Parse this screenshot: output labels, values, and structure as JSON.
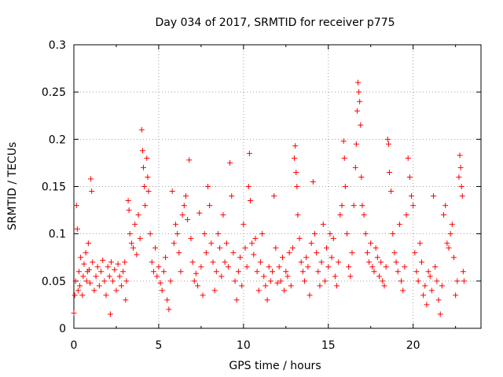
{
  "chart_data": {
    "type": "scatter",
    "title": "Day 034 of 2017, SRMTID for receiver p775",
    "xlabel": "GPS time / hours",
    "ylabel": "SRMTID / TECUs",
    "xlim": [
      0,
      24
    ],
    "ylim": [
      0,
      0.3
    ],
    "xticks": [
      0,
      5,
      10,
      15,
      20
    ],
    "yticks": [
      0,
      0.05,
      0.1,
      0.15,
      0.2,
      0.25,
      0.3
    ],
    "xtick_labels": [
      "0",
      "5",
      "10",
      "15",
      "20"
    ],
    "ytick_labels": [
      "0",
      "0.05",
      "0.1",
      "0.15",
      "0.2",
      "0.25",
      "0.3"
    ],
    "grid": true,
    "marker": "+",
    "color": "#ff0000",
    "series": [
      {
        "name": "SRMTID",
        "points": [
          [
            0.0,
            0.016
          ],
          [
            0.05,
            0.035
          ],
          [
            0.1,
            0.05
          ],
          [
            0.15,
            0.13
          ],
          [
            0.2,
            0.105
          ],
          [
            0.25,
            0.04
          ],
          [
            0.3,
            0.06
          ],
          [
            0.35,
            0.045
          ],
          [
            0.4,
            0.075
          ],
          [
            0.5,
            0.035
          ],
          [
            0.55,
            0.055
          ],
          [
            0.6,
            0.068
          ],
          [
            0.7,
            0.08
          ],
          [
            0.75,
            0.05
          ],
          [
            0.8,
            0.06
          ],
          [
            0.85,
            0.09
          ],
          [
            0.9,
            0.062
          ],
          [
            0.95,
            0.048
          ],
          [
            1.0,
            0.158
          ],
          [
            1.05,
            0.145
          ],
          [
            1.1,
            0.07
          ],
          [
            1.2,
            0.04
          ],
          [
            1.3,
            0.055
          ],
          [
            1.4,
            0.065
          ],
          [
            1.5,
            0.045
          ],
          [
            1.6,
            0.06
          ],
          [
            1.7,
            0.072
          ],
          [
            1.8,
            0.05
          ],
          [
            1.9,
            0.035
          ],
          [
            2.0,
            0.065
          ],
          [
            2.1,
            0.055
          ],
          [
            2.15,
            0.015
          ],
          [
            2.2,
            0.07
          ],
          [
            2.3,
            0.05
          ],
          [
            2.4,
            0.062
          ],
          [
            2.5,
            0.04
          ],
          [
            2.6,
            0.068
          ],
          [
            2.7,
            0.055
          ],
          [
            2.8,
            0.045
          ],
          [
            2.9,
            0.06
          ],
          [
            3.0,
            0.07
          ],
          [
            3.05,
            0.03
          ],
          [
            3.1,
            0.05
          ],
          [
            3.2,
            0.135
          ],
          [
            3.25,
            0.125
          ],
          [
            3.3,
            0.1
          ],
          [
            3.4,
            0.09
          ],
          [
            3.5,
            0.085
          ],
          [
            3.6,
            0.11
          ],
          [
            3.7,
            0.078
          ],
          [
            3.8,
            0.12
          ],
          [
            3.9,
            0.095
          ],
          [
            4.0,
            0.21
          ],
          [
            4.05,
            0.188
          ],
          [
            4.1,
            0.17
          ],
          [
            4.15,
            0.15
          ],
          [
            4.2,
            0.13
          ],
          [
            4.3,
            0.18
          ],
          [
            4.35,
            0.16
          ],
          [
            4.4,
            0.145
          ],
          [
            4.5,
            0.1
          ],
          [
            4.6,
            0.07
          ],
          [
            4.7,
            0.06
          ],
          [
            4.8,
            0.085
          ],
          [
            4.9,
            0.055
          ],
          [
            5.0,
            0.065
          ],
          [
            5.1,
            0.048
          ],
          [
            5.2,
            0.04
          ],
          [
            5.3,
            0.06
          ],
          [
            5.4,
            0.075
          ],
          [
            5.5,
            0.03
          ],
          [
            5.6,
            0.02
          ],
          [
            5.7,
            0.05
          ],
          [
            5.8,
            0.145
          ],
          [
            5.9,
            0.09
          ],
          [
            6.0,
            0.11
          ],
          [
            6.1,
            0.1
          ],
          [
            6.2,
            0.08
          ],
          [
            6.3,
            0.06
          ],
          [
            6.4,
            0.12
          ],
          [
            6.5,
            0.13
          ],
          [
            6.6,
            0.14
          ],
          [
            6.7,
            0.115
          ],
          [
            6.8,
            0.178
          ],
          [
            6.9,
            0.095
          ],
          [
            7.0,
            0.07
          ],
          [
            7.1,
            0.05
          ],
          [
            7.2,
            0.058
          ],
          [
            7.3,
            0.045
          ],
          [
            7.4,
            0.122
          ],
          [
            7.5,
            0.065
          ],
          [
            7.6,
            0.035
          ],
          [
            7.7,
            0.1
          ],
          [
            7.8,
            0.08
          ],
          [
            7.9,
            0.15
          ],
          [
            8.0,
            0.13
          ],
          [
            8.1,
            0.09
          ],
          [
            8.2,
            0.07
          ],
          [
            8.3,
            0.04
          ],
          [
            8.4,
            0.06
          ],
          [
            8.5,
            0.1
          ],
          [
            8.6,
            0.085
          ],
          [
            8.7,
            0.055
          ],
          [
            8.8,
            0.12
          ],
          [
            8.9,
            0.07
          ],
          [
            9.0,
            0.09
          ],
          [
            9.1,
            0.065
          ],
          [
            9.2,
            0.175
          ],
          [
            9.3,
            0.14
          ],
          [
            9.4,
            0.08
          ],
          [
            9.5,
            0.05
          ],
          [
            9.6,
            0.03
          ],
          [
            9.7,
            0.06
          ],
          [
            9.8,
            0.075
          ],
          [
            9.9,
            0.045
          ],
          [
            10.0,
            0.11
          ],
          [
            10.1,
            0.085
          ],
          [
            10.2,
            0.065
          ],
          [
            10.3,
            0.15
          ],
          [
            10.35,
            0.185
          ],
          [
            10.4,
            0.135
          ],
          [
            10.5,
            0.09
          ],
          [
            10.6,
            0.078
          ],
          [
            10.7,
            0.095
          ],
          [
            10.8,
            0.06
          ],
          [
            10.9,
            0.04
          ],
          [
            11.0,
            0.07
          ],
          [
            11.1,
            0.1
          ],
          [
            11.2,
            0.055
          ],
          [
            11.3,
            0.045
          ],
          [
            11.4,
            0.03
          ],
          [
            11.5,
            0.065
          ],
          [
            11.6,
            0.05
          ],
          [
            11.7,
            0.06
          ],
          [
            11.8,
            0.14
          ],
          [
            11.9,
            0.085
          ],
          [
            12.0,
            0.048
          ],
          [
            12.1,
            0.065
          ],
          [
            12.2,
            0.05
          ],
          [
            12.3,
            0.075
          ],
          [
            12.4,
            0.04
          ],
          [
            12.5,
            0.06
          ],
          [
            12.6,
            0.055
          ],
          [
            12.7,
            0.08
          ],
          [
            12.8,
            0.045
          ],
          [
            12.9,
            0.085
          ],
          [
            13.0,
            0.18
          ],
          [
            13.05,
            0.193
          ],
          [
            13.1,
            0.165
          ],
          [
            13.15,
            0.15
          ],
          [
            13.2,
            0.12
          ],
          [
            13.3,
            0.095
          ],
          [
            13.4,
            0.07
          ],
          [
            13.5,
            0.06
          ],
          [
            13.6,
            0.05
          ],
          [
            13.7,
            0.075
          ],
          [
            13.8,
            0.065
          ],
          [
            13.9,
            0.035
          ],
          [
            14.0,
            0.09
          ],
          [
            14.1,
            0.155
          ],
          [
            14.2,
            0.1
          ],
          [
            14.3,
            0.08
          ],
          [
            14.4,
            0.06
          ],
          [
            14.5,
            0.045
          ],
          [
            14.6,
            0.07
          ],
          [
            14.7,
            0.11
          ],
          [
            14.8,
            0.05
          ],
          [
            14.9,
            0.085
          ],
          [
            15.0,
            0.065
          ],
          [
            15.1,
            0.1
          ],
          [
            15.2,
            0.075
          ],
          [
            15.3,
            0.095
          ],
          [
            15.4,
            0.055
          ],
          [
            15.5,
            0.045
          ],
          [
            15.6,
            0.07
          ],
          [
            15.7,
            0.12
          ],
          [
            15.8,
            0.13
          ],
          [
            15.9,
            0.198
          ],
          [
            15.95,
            0.18
          ],
          [
            16.0,
            0.15
          ],
          [
            16.1,
            0.1
          ],
          [
            16.2,
            0.065
          ],
          [
            16.3,
            0.055
          ],
          [
            16.4,
            0.08
          ],
          [
            16.5,
            0.13
          ],
          [
            16.6,
            0.17
          ],
          [
            16.65,
            0.195
          ],
          [
            16.7,
            0.23
          ],
          [
            16.75,
            0.26
          ],
          [
            16.8,
            0.25
          ],
          [
            16.85,
            0.24
          ],
          [
            16.9,
            0.215
          ],
          [
            16.95,
            0.16
          ],
          [
            17.0,
            0.13
          ],
          [
            17.1,
            0.12
          ],
          [
            17.2,
            0.1
          ],
          [
            17.3,
            0.08
          ],
          [
            17.4,
            0.07
          ],
          [
            17.5,
            0.09
          ],
          [
            17.6,
            0.065
          ],
          [
            17.7,
            0.06
          ],
          [
            17.8,
            0.085
          ],
          [
            17.9,
            0.075
          ],
          [
            18.0,
            0.055
          ],
          [
            18.1,
            0.07
          ],
          [
            18.2,
            0.05
          ],
          [
            18.3,
            0.045
          ],
          [
            18.4,
            0.065
          ],
          [
            18.5,
            0.2
          ],
          [
            18.55,
            0.195
          ],
          [
            18.6,
            0.165
          ],
          [
            18.7,
            0.145
          ],
          [
            18.8,
            0.1
          ],
          [
            18.9,
            0.08
          ],
          [
            19.0,
            0.07
          ],
          [
            19.1,
            0.06
          ],
          [
            19.2,
            0.11
          ],
          [
            19.3,
            0.05
          ],
          [
            19.4,
            0.04
          ],
          [
            19.5,
            0.065
          ],
          [
            19.6,
            0.12
          ],
          [
            19.7,
            0.18
          ],
          [
            19.8,
            0.16
          ],
          [
            19.9,
            0.14
          ],
          [
            20.0,
            0.13
          ],
          [
            20.1,
            0.08
          ],
          [
            20.2,
            0.06
          ],
          [
            20.3,
            0.05
          ],
          [
            20.4,
            0.09
          ],
          [
            20.5,
            0.07
          ],
          [
            20.6,
            0.035
          ],
          [
            20.7,
            0.045
          ],
          [
            20.8,
            0.025
          ],
          [
            20.9,
            0.06
          ],
          [
            21.0,
            0.055
          ],
          [
            21.1,
            0.04
          ],
          [
            21.2,
            0.14
          ],
          [
            21.3,
            0.065
          ],
          [
            21.4,
            0.05
          ],
          [
            21.5,
            0.03
          ],
          [
            21.6,
            0.015
          ],
          [
            21.7,
            0.045
          ],
          [
            21.8,
            0.12
          ],
          [
            21.9,
            0.13
          ],
          [
            22.0,
            0.09
          ],
          [
            22.1,
            0.085
          ],
          [
            22.2,
            0.1
          ],
          [
            22.3,
            0.11
          ],
          [
            22.4,
            0.075
          ],
          [
            22.5,
            0.035
          ],
          [
            22.6,
            0.05
          ],
          [
            22.7,
            0.16
          ],
          [
            22.75,
            0.183
          ],
          [
            22.8,
            0.17
          ],
          [
            22.85,
            0.15
          ],
          [
            22.9,
            0.14
          ],
          [
            22.95,
            0.06
          ],
          [
            23.0,
            0.05
          ]
        ]
      }
    ]
  }
}
